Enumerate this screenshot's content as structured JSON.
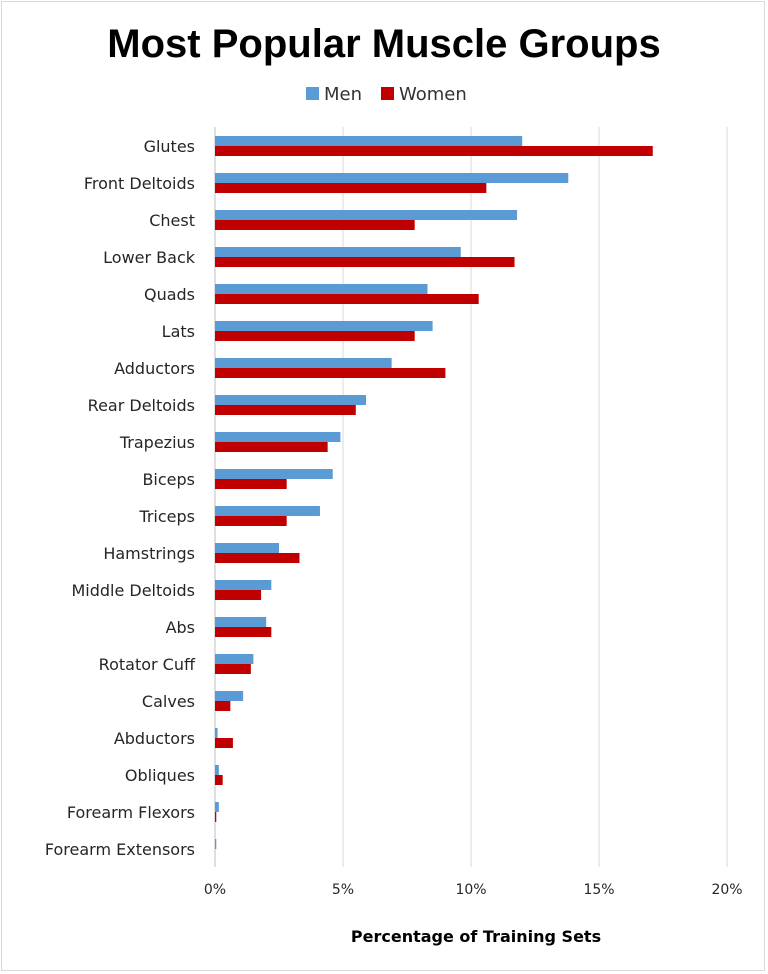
{
  "chart_data": {
    "type": "bar",
    "orientation": "horizontal",
    "title": "Most Popular Muscle Groups",
    "xlabel": "Percentage of Training Sets",
    "ylabel": "",
    "xlim": [
      0,
      20
    ],
    "x_ticks": [
      0,
      5,
      10,
      15,
      20
    ],
    "x_tick_labels": [
      "0%",
      "5%",
      "10%",
      "15%",
      "20%"
    ],
    "grid": true,
    "legend_position": "top",
    "categories": [
      "Glutes",
      "Front Deltoids",
      "Chest",
      "Lower Back",
      "Quads",
      "Lats",
      "Adductors",
      "Rear Deltoids",
      "Trapezius",
      "Biceps",
      "Triceps",
      "Hamstrings",
      "Middle Deltoids",
      "Abs",
      "Rotator Cuff",
      "Calves",
      "Abductors",
      "Obliques",
      "Forearm Flexors",
      "Forearm Extensors"
    ],
    "series": [
      {
        "name": "Men",
        "color": "#5b9bd5",
        "values": [
          12.0,
          13.8,
          11.8,
          9.6,
          8.3,
          8.5,
          6.9,
          5.9,
          4.9,
          4.6,
          4.1,
          2.5,
          2.2,
          2.0,
          1.5,
          1.1,
          0.1,
          0.15,
          0.15,
          0.05
        ]
      },
      {
        "name": "Women",
        "color": "#c00000",
        "values": [
          17.1,
          10.6,
          7.8,
          11.7,
          10.3,
          7.8,
          9.0,
          5.5,
          4.4,
          2.8,
          2.8,
          3.3,
          1.8,
          2.2,
          1.4,
          0.6,
          0.7,
          0.3,
          0.05,
          0.0
        ]
      }
    ]
  }
}
